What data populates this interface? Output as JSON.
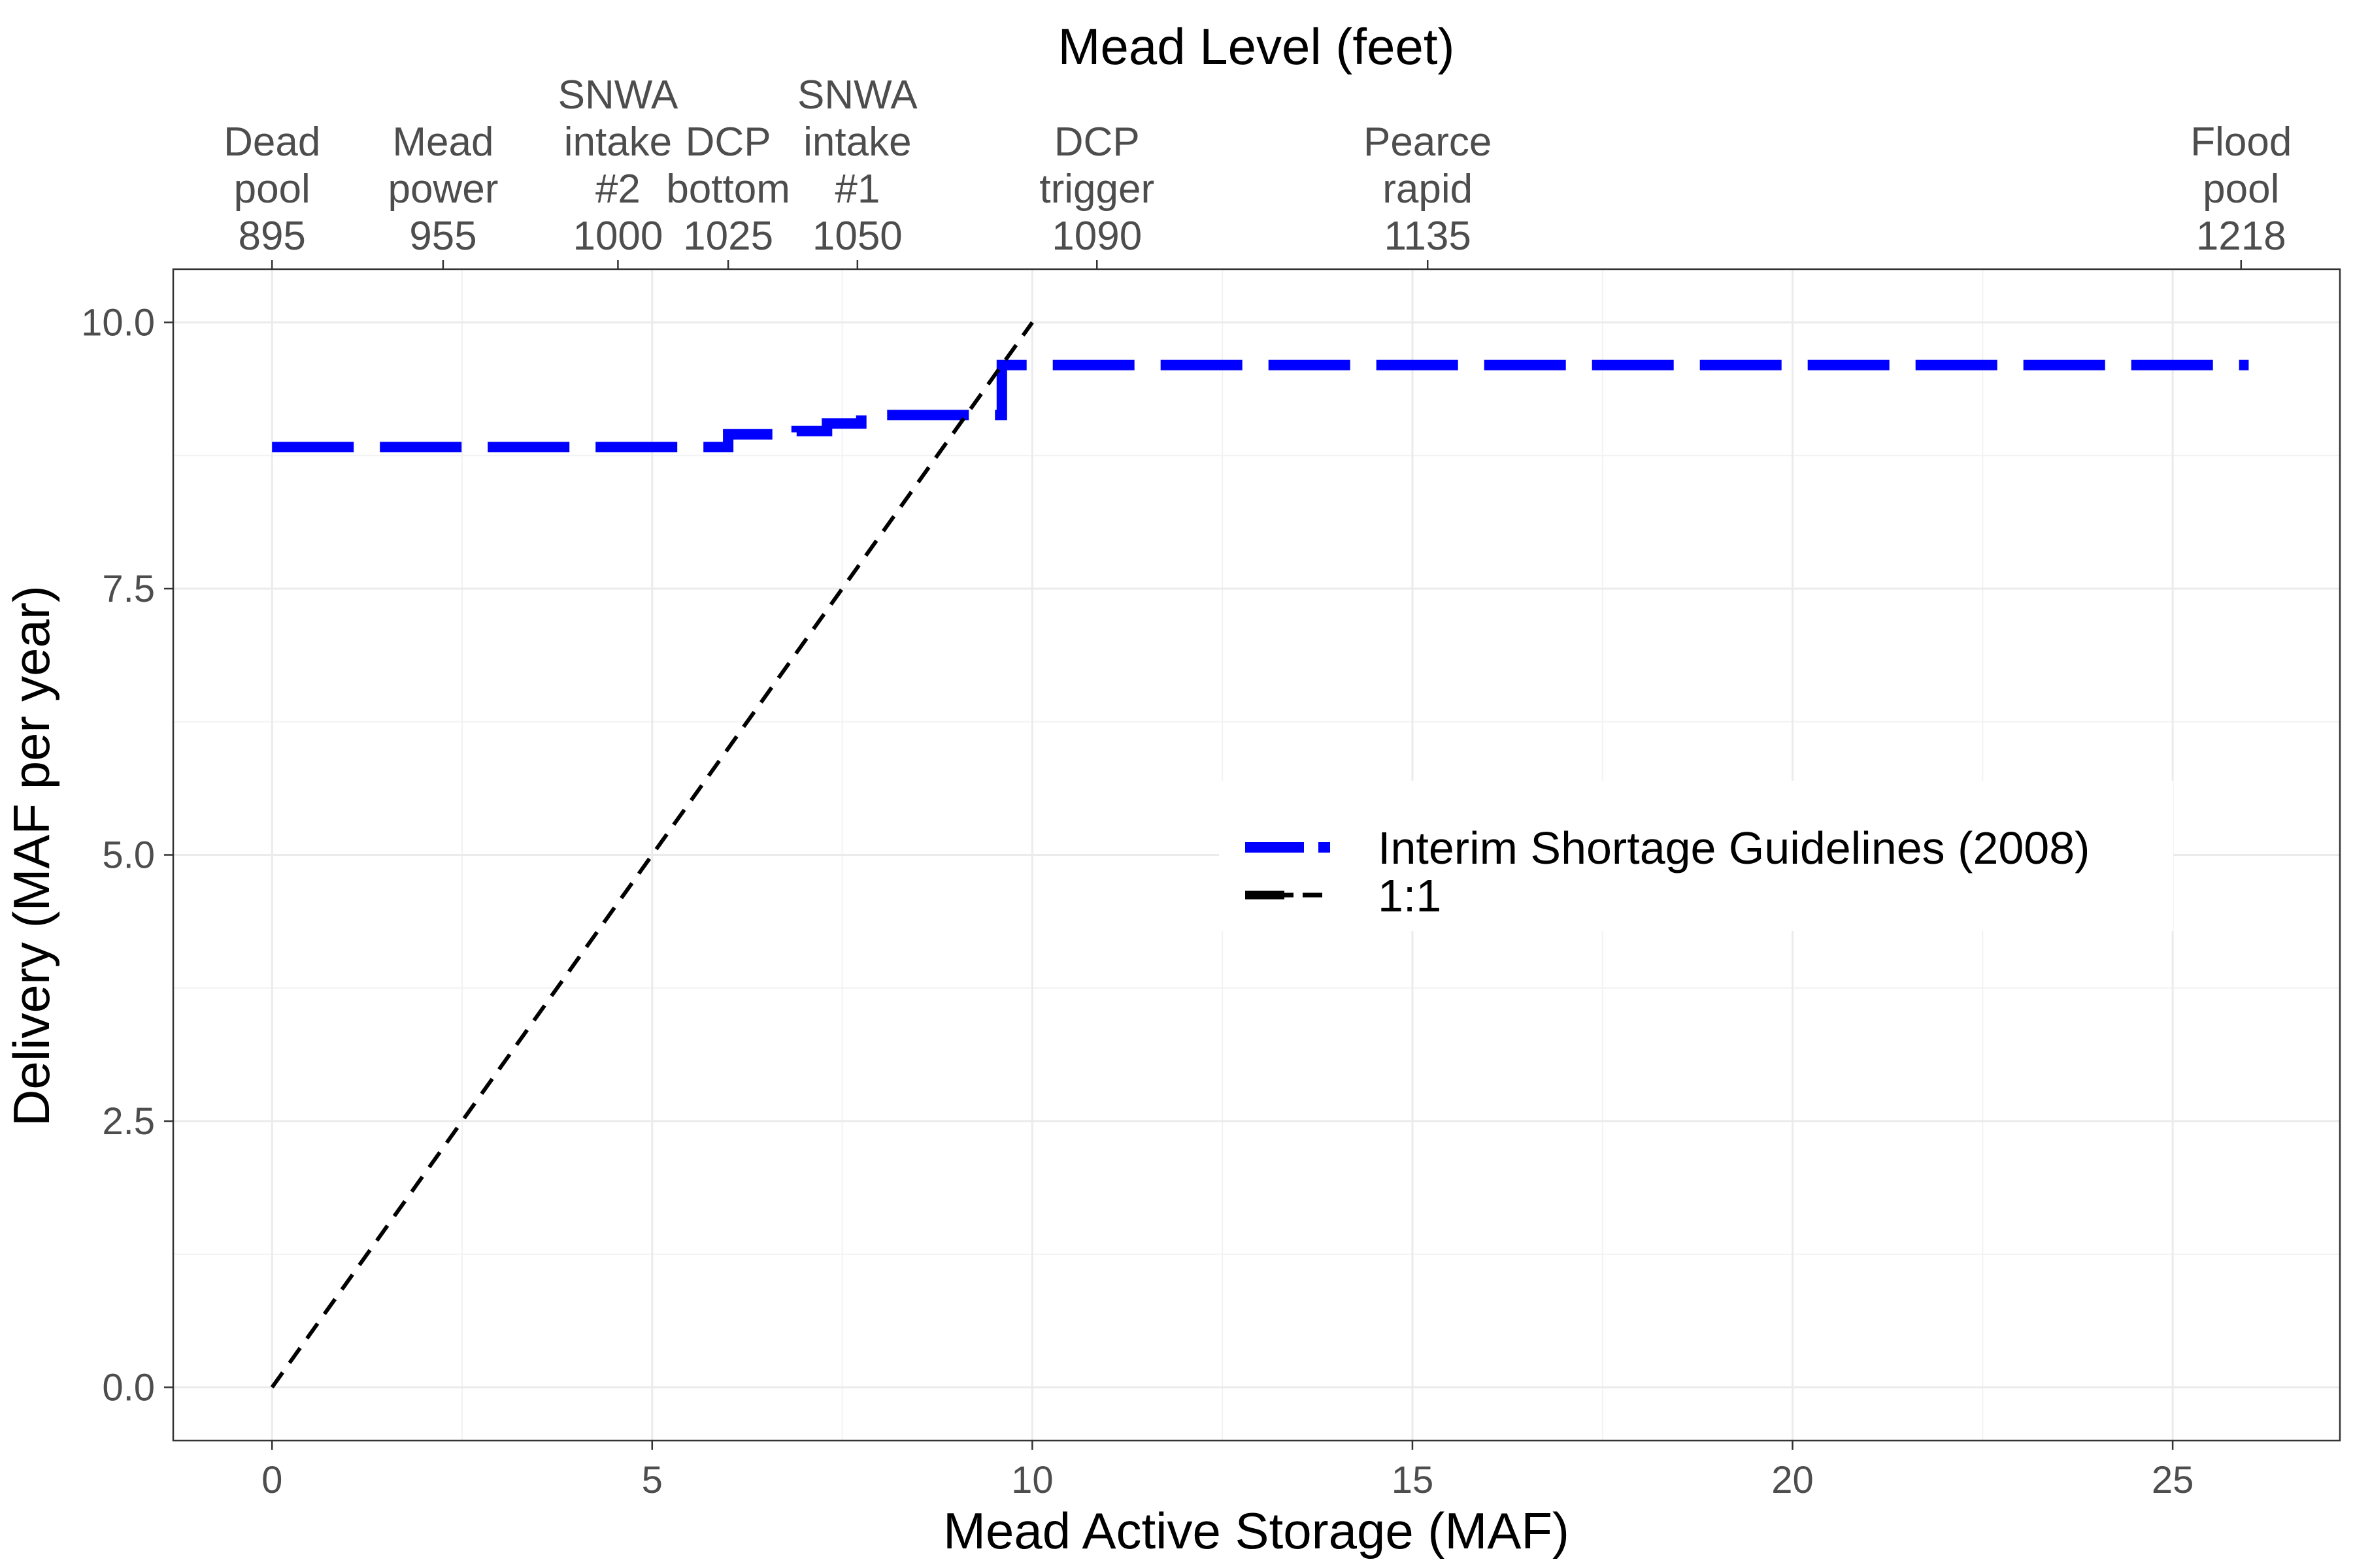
{
  "chart_data": {
    "type": "line",
    "title": "",
    "xlabel": "Mead Active Storage (MAF)",
    "ylabel": "Delivery (MAF per year)",
    "top_axis_title": "Mead Level (feet)",
    "xlim": [
      -1.3,
      27.2
    ],
    "ylim": [
      -0.5,
      10.5
    ],
    "x_ticks": [
      0,
      5,
      10,
      15,
      20,
      25
    ],
    "x_tick_labels": [
      "0",
      "5",
      "10",
      "15",
      "20",
      "25"
    ],
    "y_ticks": [
      0,
      2.5,
      5,
      7.5,
      10
    ],
    "y_tick_labels": [
      "0.0",
      "2.5",
      "5.0",
      "7.5",
      "10.0"
    ],
    "grid": true,
    "top_axis_ticks": [
      {
        "storage": 0,
        "label": "Dead pool",
        "level": "895"
      },
      {
        "storage": 2.25,
        "label": "Mead power",
        "level": "955"
      },
      {
        "storage": 4.55,
        "label": "SNWA intake #2",
        "level": "1000"
      },
      {
        "storage": 6.0,
        "label": "DCP bottom",
        "level": "1025"
      },
      {
        "storage": 7.7,
        "label": "SNWA intake #1",
        "level": "1050"
      },
      {
        "storage": 10.85,
        "label": "DCP trigger",
        "level": "1090"
      },
      {
        "storage": 15.2,
        "label": "Pearce rapid",
        "level": "1135"
      },
      {
        "storage": 25.9,
        "label": "Flood pool",
        "level": "1218"
      }
    ],
    "series": [
      {
        "name": "Interim Shortage Guidelines (2008)",
        "color": "#0000ff",
        "style": "dashed-thick",
        "x": [
          0,
          6.0,
          6.0,
          6.9,
          6.9,
          7.3,
          7.3,
          7.75,
          7.75,
          9.6,
          9.6,
          26.0
        ],
        "y": [
          8.83,
          8.83,
          8.95,
          8.95,
          8.98,
          8.98,
          9.05,
          9.05,
          9.13,
          9.13,
          9.6,
          9.6
        ]
      },
      {
        "name": "1:1",
        "color": "#000000",
        "style": "dashed",
        "x": [
          0,
          10
        ],
        "y": [
          0,
          10
        ]
      }
    ],
    "legend_position": "right-center"
  }
}
